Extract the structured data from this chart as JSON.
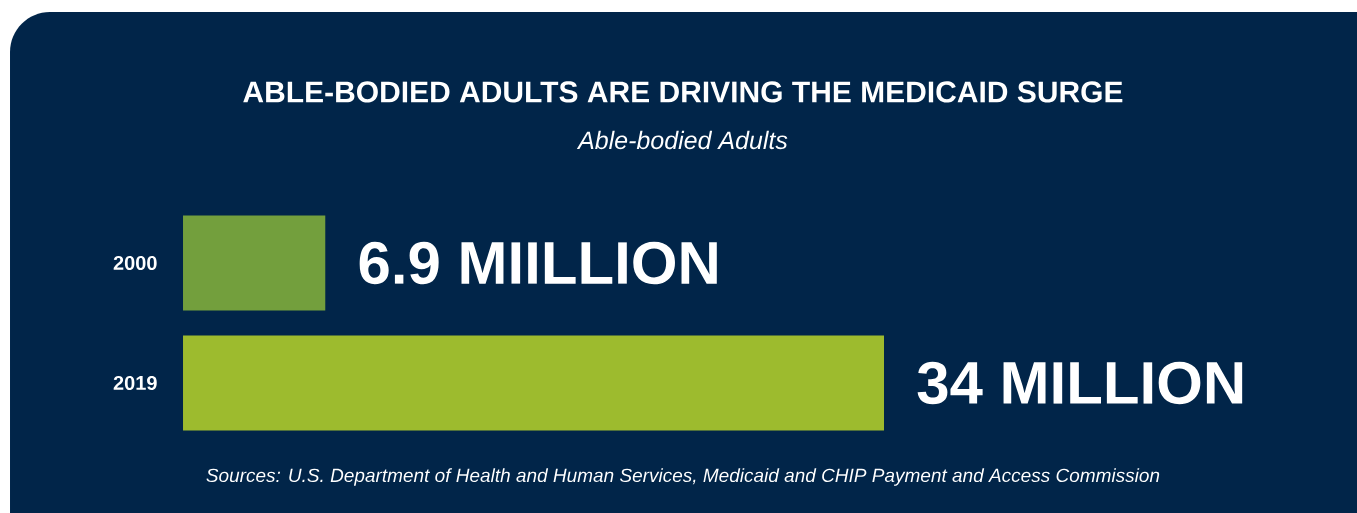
{
  "chart_data": {
    "type": "bar",
    "orientation": "horizontal",
    "title": "ABLE-BODIED ADULTS ARE DRIVING THE MEDICAID SURGE",
    "subtitle": "Able-bodied Adults",
    "categories": [
      "2000",
      "2019"
    ],
    "values": [
      6.9,
      34
    ],
    "colors": [
      "#739f3d",
      "#9dbb2e"
    ],
    "value_labels": [
      "6.9 MIILLION",
      "34 MILLION"
    ],
    "annotations": [
      "Sources: U.S. Department of Health and Human Services, Medicaid and CHIP Payment and Access Commission"
    ]
  }
}
